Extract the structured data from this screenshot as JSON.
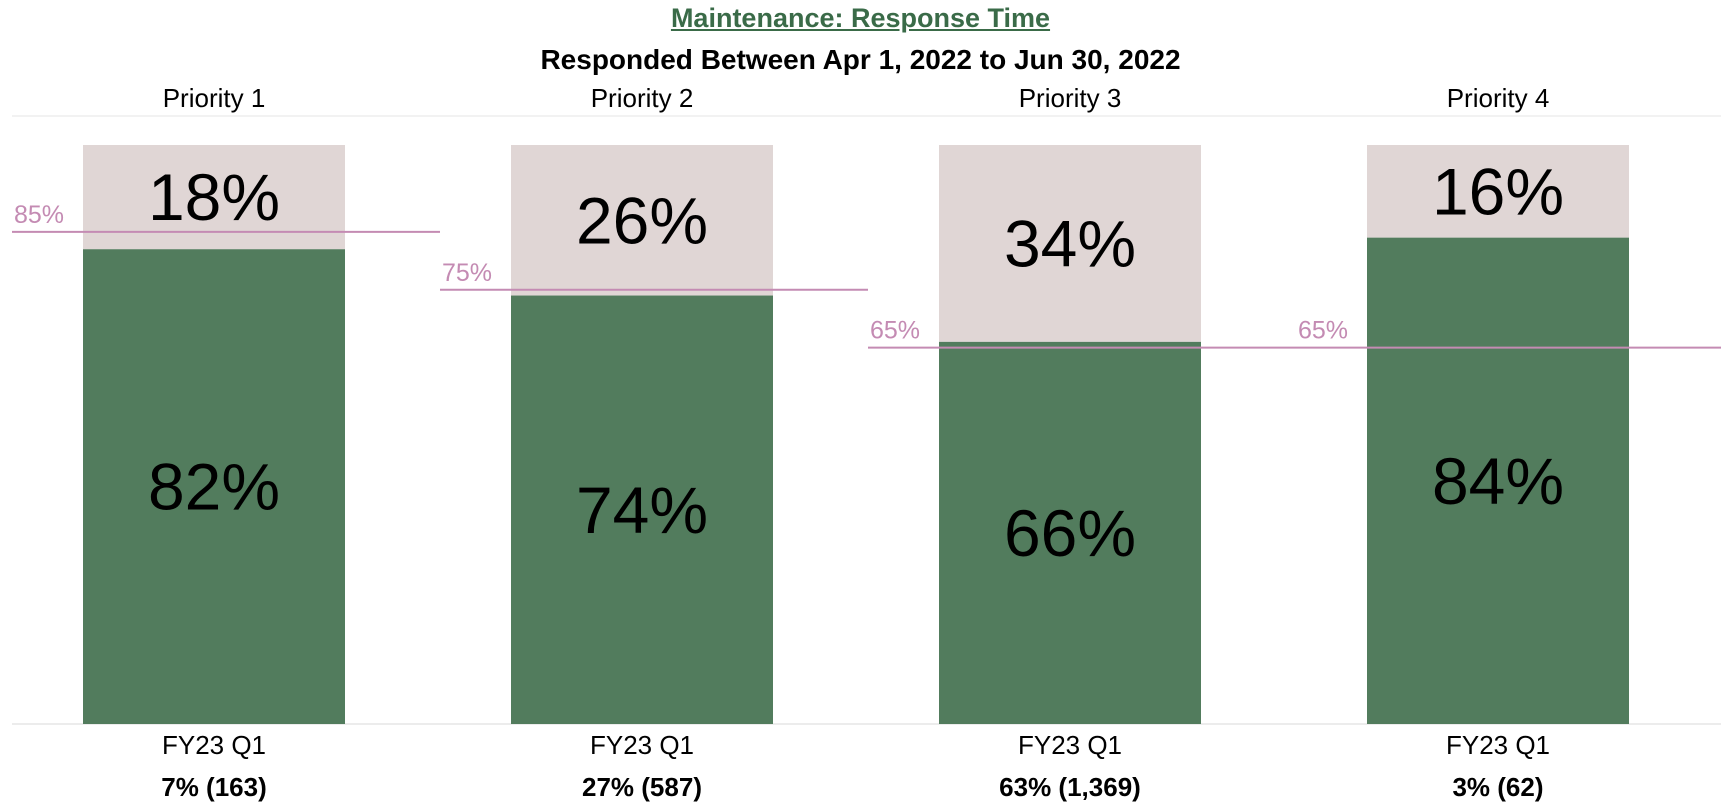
{
  "title": "Maintenance: Response Time",
  "subtitle": "Responded Between Apr 1, 2022 to Jun  30, 2022",
  "colors": {
    "on_time": "#527c5d",
    "remainder": "#e0d6d5",
    "target_line": "#c48bb3",
    "title": "#3a6b48"
  },
  "chart_data": {
    "type": "bar",
    "stacked": true,
    "ylim": [
      0,
      100
    ],
    "panels": [
      {
        "title": "Priority 1",
        "category": "FY23 Q1",
        "on_time_pct": 82,
        "on_time_label": "82%",
        "remainder_pct": 18,
        "remainder_label": "18%",
        "target_pct": 85,
        "target_label": "85%",
        "share_label": "7% (163)"
      },
      {
        "title": "Priority 2",
        "category": "FY23 Q1",
        "on_time_pct": 74,
        "on_time_label": "74%",
        "remainder_pct": 26,
        "remainder_label": "26%",
        "target_pct": 75,
        "target_label": "75%",
        "share_label": "27% (587)"
      },
      {
        "title": "Priority 3",
        "category": "FY23 Q1",
        "on_time_pct": 66,
        "on_time_label": "66%",
        "remainder_pct": 34,
        "remainder_label": "34%",
        "target_pct": 65,
        "target_label": "65%",
        "share_label": "63% (1,369)"
      },
      {
        "title": "Priority 4",
        "category": "FY23 Q1",
        "on_time_pct": 84,
        "on_time_label": "84%",
        "remainder_pct": 16,
        "remainder_label": "16%",
        "target_pct": 65,
        "target_label": "65%",
        "share_label": "3% (62)"
      }
    ]
  }
}
